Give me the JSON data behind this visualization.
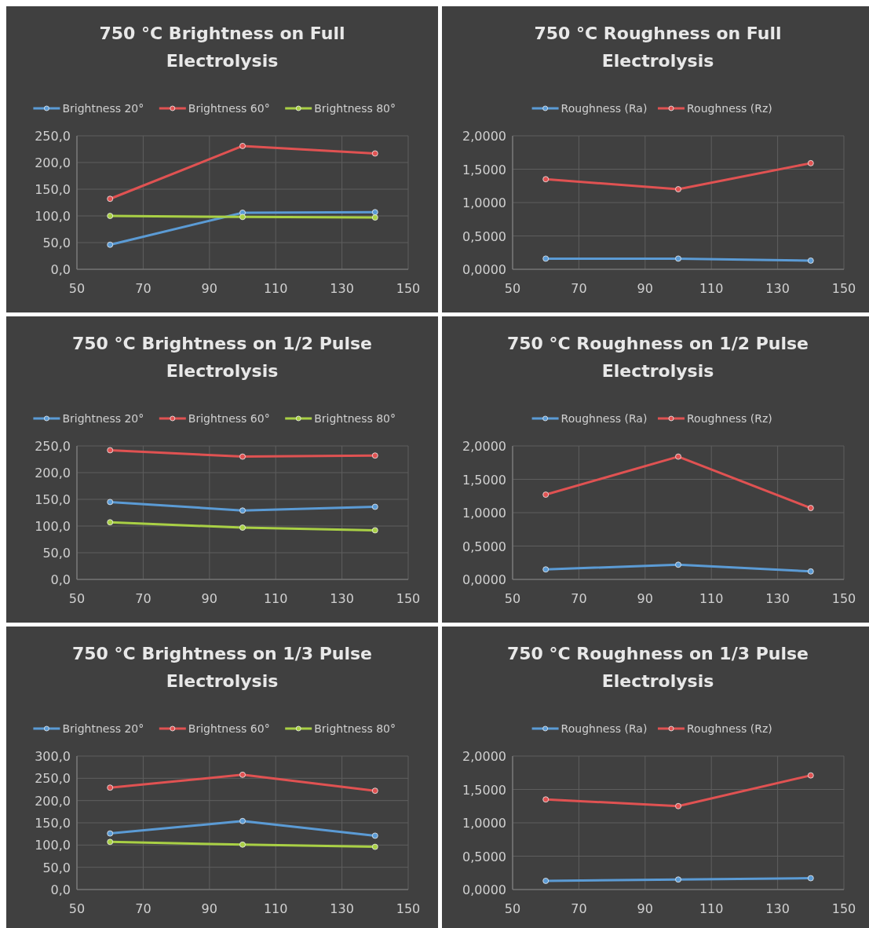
{
  "chart_data": [
    {
      "type": "line",
      "title": "750 °C Brightness on Full Electrolysis",
      "x": [
        60,
        100,
        140
      ],
      "xlim": [
        50,
        150
      ],
      "xticks": [
        50,
        70,
        90,
        110,
        130,
        150
      ],
      "ylim": [
        0,
        250
      ],
      "yticks": [
        {
          "value": 0,
          "label": "0,0"
        },
        {
          "value": 50,
          "label": "50,0"
        },
        {
          "value": 100,
          "label": "100,0"
        },
        {
          "value": 150,
          "label": "150,0"
        },
        {
          "value": 200,
          "label": "200,0"
        },
        {
          "value": 250,
          "label": "250,0"
        }
      ],
      "grid": true,
      "legend": "top",
      "marker": "circle",
      "series": [
        {
          "name": "Brightness 20°",
          "color": "#5b9bd5",
          "values": [
            46,
            106,
            107
          ]
        },
        {
          "name": "Brightness 60°",
          "color": "#e05252",
          "values": [
            132,
            231,
            217
          ]
        },
        {
          "name": "Brightness 80°",
          "color": "#a9d045",
          "values": [
            100,
            98,
            97
          ]
        }
      ]
    },
    {
      "type": "line",
      "title": "750 °C Roughness on Full Electrolysis",
      "x": [
        60,
        100,
        140
      ],
      "xlim": [
        50,
        150
      ],
      "xticks": [
        50,
        70,
        90,
        110,
        130,
        150
      ],
      "ylim": [
        0,
        2
      ],
      "yticks": [
        {
          "value": 0,
          "label": "0,0000"
        },
        {
          "value": 0.5,
          "label": "0,5000"
        },
        {
          "value": 1,
          "label": "1,0000"
        },
        {
          "value": 1.5,
          "label": "1,5000"
        },
        {
          "value": 2,
          "label": "2,0000"
        }
      ],
      "grid": true,
      "legend": "top",
      "marker": "circle",
      "series": [
        {
          "name": "Roughness (Ra)",
          "color": "#5b9bd5",
          "values": [
            0.16,
            0.16,
            0.13
          ]
        },
        {
          "name": "Roughness (Rz)",
          "color": "#e05252",
          "values": [
            1.35,
            1.2,
            1.59
          ]
        }
      ]
    },
    {
      "type": "line",
      "title": "750 °C Brightness on 1/2 Pulse Electrolysis",
      "x": [
        60,
        100,
        140
      ],
      "xlim": [
        50,
        150
      ],
      "xticks": [
        50,
        70,
        90,
        110,
        130,
        150
      ],
      "ylim": [
        0,
        250
      ],
      "yticks": [
        {
          "value": 0,
          "label": "0,0"
        },
        {
          "value": 50,
          "label": "50,0"
        },
        {
          "value": 100,
          "label": "100,0"
        },
        {
          "value": 150,
          "label": "150,0"
        },
        {
          "value": 200,
          "label": "200,0"
        },
        {
          "value": 250,
          "label": "250,0"
        }
      ],
      "grid": true,
      "legend": "top",
      "marker": "circle",
      "series": [
        {
          "name": "Brightness 20°",
          "color": "#5b9bd5",
          "values": [
            145,
            129,
            136
          ]
        },
        {
          "name": "Brightness 60°",
          "color": "#e05252",
          "values": [
            242,
            230,
            232
          ]
        },
        {
          "name": "Brightness 80°",
          "color": "#a9d045",
          "values": [
            107,
            97,
            92
          ]
        }
      ]
    },
    {
      "type": "line",
      "title": "750 °C Roughness on 1/2 Pulse Electrolysis",
      "x": [
        60,
        100,
        140
      ],
      "xlim": [
        50,
        150
      ],
      "xticks": [
        50,
        70,
        90,
        110,
        130,
        150
      ],
      "ylim": [
        0,
        2
      ],
      "yticks": [
        {
          "value": 0,
          "label": "0,0000"
        },
        {
          "value": 0.5,
          "label": "0,5000"
        },
        {
          "value": 1,
          "label": "1,0000"
        },
        {
          "value": 1.5,
          "label": "1,5000"
        },
        {
          "value": 2,
          "label": "2,0000"
        }
      ],
      "grid": true,
      "legend": "top",
      "marker": "circle",
      "series": [
        {
          "name": "Roughness (Ra)",
          "color": "#5b9bd5",
          "values": [
            0.15,
            0.22,
            0.12
          ]
        },
        {
          "name": "Roughness (Rz)",
          "color": "#e05252",
          "values": [
            1.27,
            1.84,
            1.07
          ]
        }
      ]
    },
    {
      "type": "line",
      "title": "750 °C Brightness on 1/3 Pulse Electrolysis",
      "x": [
        60,
        100,
        140
      ],
      "xlim": [
        50,
        150
      ],
      "xticks": [
        50,
        70,
        90,
        110,
        130,
        150
      ],
      "ylim": [
        0,
        300
      ],
      "yticks": [
        {
          "value": 0,
          "label": "0,0"
        },
        {
          "value": 50,
          "label": "50,0"
        },
        {
          "value": 100,
          "label": "100,0"
        },
        {
          "value": 150,
          "label": "150,0"
        },
        {
          "value": 200,
          "label": "200,0"
        },
        {
          "value": 250,
          "label": "250,0"
        },
        {
          "value": 300,
          "label": "300,0"
        }
      ],
      "grid": true,
      "legend": "top",
      "marker": "circle",
      "series": [
        {
          "name": "Brightness 20°",
          "color": "#5b9bd5",
          "values": [
            126,
            154,
            121
          ]
        },
        {
          "name": "Brightness 60°",
          "color": "#e05252",
          "values": [
            229,
            258,
            222
          ]
        },
        {
          "name": "Brightness 80°",
          "color": "#a9d045",
          "values": [
            107,
            101,
            96
          ]
        }
      ]
    },
    {
      "type": "line",
      "title": "750 °C Roughness on 1/3 Pulse Electrolysis",
      "x": [
        60,
        100,
        140
      ],
      "xlim": [
        50,
        150
      ],
      "xticks": [
        50,
        70,
        90,
        110,
        130,
        150
      ],
      "ylim": [
        0,
        2
      ],
      "yticks": [
        {
          "value": 0,
          "label": "0,0000"
        },
        {
          "value": 0.5,
          "label": "0,5000"
        },
        {
          "value": 1,
          "label": "1,0000"
        },
        {
          "value": 1.5,
          "label": "1,5000"
        },
        {
          "value": 2,
          "label": "2,0000"
        }
      ],
      "grid": true,
      "legend": "top",
      "marker": "circle",
      "series": [
        {
          "name": "Roughness (Ra)",
          "color": "#5b9bd5",
          "values": [
            0.13,
            0.15,
            0.17
          ]
        },
        {
          "name": "Roughness (Rz)",
          "color": "#e05252",
          "values": [
            1.35,
            1.25,
            1.71
          ]
        }
      ]
    }
  ]
}
